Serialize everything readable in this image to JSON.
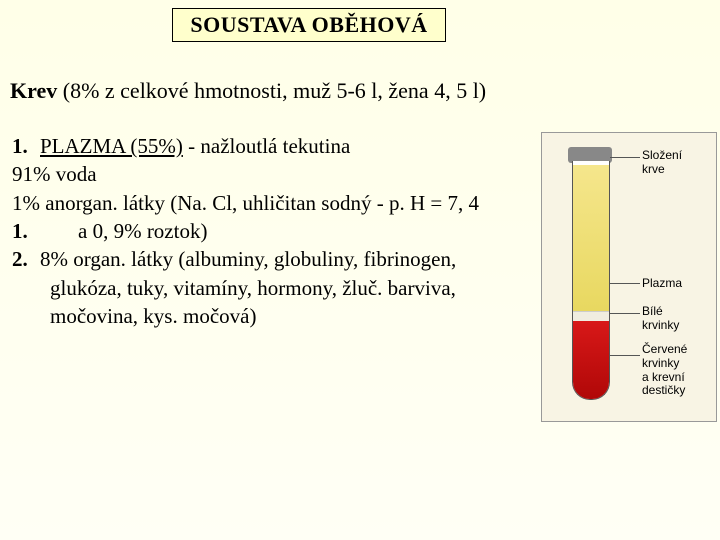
{
  "title": "SOUSTAVA OBĚHOVÁ",
  "subtitle": {
    "bold": "Krev",
    "rest": " (8% z celkové hmotnosti, muž 5-6 l, žena 4, 5 l)"
  },
  "content": {
    "line1_num": "1.",
    "line1_label": "PLAZMA (55%)",
    "line1_rest": " - nažloutlá tekutina",
    "line2": "91% voda",
    "line3": "1% anorgan. látky (Na. Cl, uhličitan sodný - p. H = 7, 4",
    "line4_num": "1.",
    "line4_text": "a 0, 9% roztok)",
    "line5_num": "2.",
    "line5_text": "8% organ. látky (albuminy, globuliny, fibrinogen,",
    "line6": "glukóza, tuky, vitamíny, hormony, žluč. barviva,",
    "line7": "močovina, kys. močová)"
  },
  "image": {
    "label_top": "Složení\nkrve",
    "label_plasma": "Plazma",
    "label_white": "Bílé\nkrvinky",
    "label_red": "Červené\nkrvinky\na krevní\ndestičky",
    "colors": {
      "plasma": "#e8d860",
      "buffy": "#f0ede0",
      "red": "#c01010",
      "bg": "#f8f4e4"
    }
  }
}
